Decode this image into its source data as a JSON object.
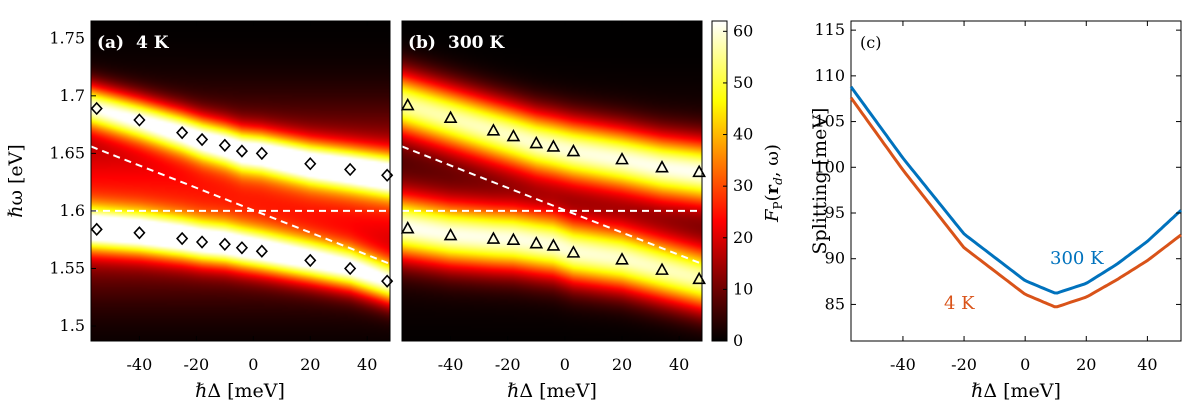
{
  "chart_data": [
    {
      "type": "heatmap",
      "panel_label": "(a)",
      "title": "4 K",
      "xlabel": "ℏΔ [meV]",
      "ylabel": "ℏω [eV]",
      "xlim": [
        -57,
        48
      ],
      "ylim": [
        1.487,
        1.765
      ],
      "xticks": [
        -40,
        -20,
        0,
        20,
        40
      ],
      "yticks": [
        1.5,
        1.55,
        1.6,
        1.65,
        1.7,
        1.75
      ],
      "ytick_labels": [
        "1.5",
        "1.55",
        "1.6",
        "1.65",
        "1.7",
        "1.75"
      ],
      "colormap": "hot",
      "color_range": [
        0,
        62
      ],
      "markers": "circle-outline",
      "upper_points": {
        "x": [
          -55,
          -40,
          -25,
          -18,
          -10,
          -4,
          3,
          20,
          34,
          47
        ],
        "y": [
          1.689,
          1.679,
          1.668,
          1.662,
          1.657,
          1.652,
          1.65,
          1.641,
          1.636,
          1.631
        ]
      },
      "lower_points": {
        "x": [
          -55,
          -40,
          -25,
          -18,
          -10,
          -4,
          3,
          20,
          34,
          47
        ],
        "y": [
          1.584,
          1.581,
          1.576,
          1.573,
          1.571,
          1.568,
          1.565,
          1.557,
          1.55,
          1.539
        ]
      },
      "dashed_lines": [
        {
          "name": "horizontal",
          "x": [
            -57,
            48
          ],
          "y": [
            1.6,
            1.6
          ]
        },
        {
          "name": "diagonal",
          "x": [
            -57,
            48
          ],
          "y": [
            1.656,
            1.554
          ]
        }
      ]
    },
    {
      "type": "heatmap",
      "panel_label": "(b)",
      "title": "300 K",
      "xlabel": "ℏΔ [meV]",
      "xlim": [
        -57,
        48
      ],
      "ylim": [
        1.487,
        1.765
      ],
      "xticks": [
        -40,
        -20,
        0,
        20,
        40
      ],
      "colormap": "hot",
      "color_range": [
        0,
        62
      ],
      "markers": "triangle-outline",
      "upper_points": {
        "x": [
          -55,
          -40,
          -25,
          -18,
          -10,
          -4,
          3,
          20,
          34,
          47
        ],
        "y": [
          1.692,
          1.681,
          1.67,
          1.665,
          1.659,
          1.656,
          1.652,
          1.645,
          1.638,
          1.634
        ]
      },
      "lower_points": {
        "x": [
          -55,
          -40,
          -25,
          -18,
          -10,
          -4,
          3,
          20,
          34,
          47
        ],
        "y": [
          1.585,
          1.579,
          1.576,
          1.575,
          1.572,
          1.57,
          1.564,
          1.558,
          1.549,
          1.541
        ]
      },
      "dashed_lines": [
        {
          "name": "horizontal",
          "x": [
            -57,
            48
          ],
          "y": [
            1.6,
            1.6
          ]
        },
        {
          "name": "diagonal",
          "x": [
            -57,
            48
          ],
          "y": [
            1.656,
            1.554
          ]
        }
      ],
      "colorbar": {
        "label": "F_P(r_d, ω)",
        "range": [
          0,
          62
        ],
        "ticks": [
          0,
          10,
          20,
          30,
          40,
          50,
          60
        ]
      }
    },
    {
      "type": "line",
      "panel_label": "(c)",
      "xlabel": "ℏΔ [meV]",
      "ylabel": "Splitting [meV]",
      "xlim": [
        -57,
        51
      ],
      "ylim": [
        81,
        116
      ],
      "xticks": [
        -40,
        -20,
        0,
        20,
        40
      ],
      "yticks": [
        85,
        90,
        95,
        100,
        105,
        110,
        115
      ],
      "series": [
        {
          "name": "300 K",
          "color": "#0072BD",
          "x": [
            -57,
            -40,
            -20,
            0,
            10,
            20,
            30,
            40,
            51
          ],
          "y": [
            108.8,
            101.0,
            92.7,
            87.6,
            86.2,
            87.3,
            89.4,
            91.9,
            95.3
          ]
        },
        {
          "name": "4 K",
          "color": "#D95319",
          "x": [
            -57,
            -40,
            -20,
            0,
            10,
            20,
            30,
            40,
            51
          ],
          "y": [
            107.6,
            99.7,
            91.2,
            86.1,
            84.7,
            85.8,
            87.7,
            89.8,
            92.6
          ]
        }
      ]
    }
  ]
}
